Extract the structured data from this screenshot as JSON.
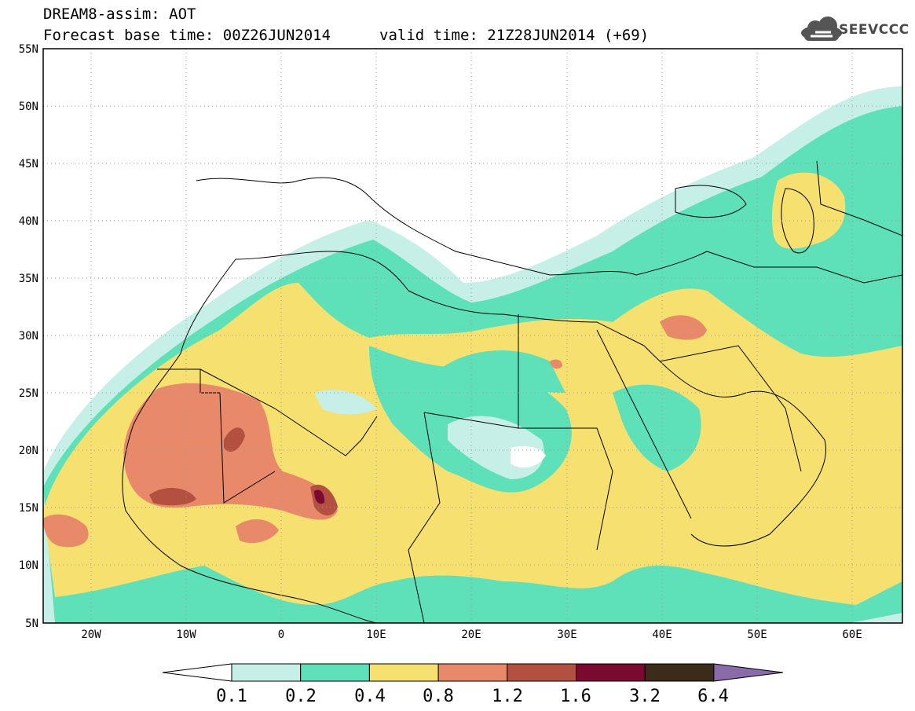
{
  "title": {
    "line1": "DREAM8-assim: AOT",
    "line2": "Forecast base time: 00Z26JUN2014",
    "valid": "valid time: 21Z28JUN2014 (+69)"
  },
  "logo": {
    "text": "SEEVCCC",
    "icon": "cloud-icon"
  },
  "map": {
    "lon_range": [
      -25,
      65
    ],
    "lat_range": [
      5,
      55
    ],
    "y_ticks": [
      "55N",
      "50N",
      "45N",
      "40N",
      "35N",
      "30N",
      "25N",
      "20N",
      "15N",
      "10N",
      "5N"
    ],
    "x_ticks": [
      "20W",
      "10W",
      "0",
      "10E",
      "20E",
      "30E",
      "40E",
      "50E",
      "60E"
    ],
    "gridlines": "dotted"
  },
  "colorbar": {
    "labels": [
      "0.1",
      "0.2",
      "0.4",
      "0.8",
      "1.2",
      "1.6",
      "3.2",
      "6.4"
    ],
    "colors": [
      "#ffffff",
      "#c6efe8",
      "#5ee0b8",
      "#f5e070",
      "#e8896a",
      "#b45040",
      "#7a0a30",
      "#3c2a1a",
      "#8a6aa8"
    ]
  }
}
